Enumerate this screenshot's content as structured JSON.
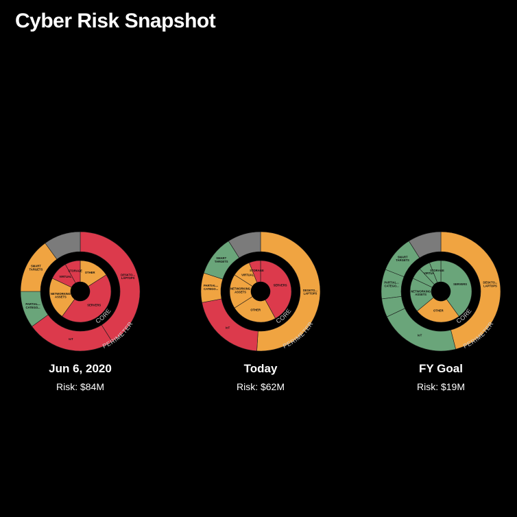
{
  "title": "Cyber Risk Snapshot",
  "colors": {
    "red": "#dc3a4c",
    "orange": "#f0a441",
    "green": "#6aa57a",
    "gray": "#7b7b7b",
    "background": "#000000"
  },
  "chart_data": [
    {
      "type": "pie",
      "variant": "nested-donut",
      "label": "Jun 6, 2020",
      "risk": "Risk: $84M",
      "outer_ring_label": "PERIMETER",
      "inner_ring_label": "CORE",
      "outer": [
        {
          "name": "DESKTO... LAPTOPS",
          "value": 41,
          "color": "red"
        },
        {
          "name": "IoT",
          "value": 24,
          "color": "red"
        },
        {
          "name": "PARTIAL... CATEGO...",
          "value": 10,
          "color": "green"
        },
        {
          "name": "SMART TARGETS",
          "value": 15,
          "color": "orange"
        },
        {
          "name": "",
          "value": 10,
          "color": "gray"
        }
      ],
      "inner": [
        {
          "name": "OTHER",
          "value": 16,
          "color": "orange"
        },
        {
          "name": "SERVERS",
          "value": 44,
          "color": "red"
        },
        {
          "name": "NETWORKING ASSETS",
          "value": 22,
          "color": "orange"
        },
        {
          "name": "VIRTUAL",
          "value": 10,
          "color": "red"
        },
        {
          "name": "STORAGE",
          "value": 8,
          "color": "red"
        }
      ]
    },
    {
      "type": "pie",
      "variant": "nested-donut",
      "label": "Today",
      "risk": "Risk: $62M",
      "outer_ring_label": "PERIMETER",
      "inner_ring_label": "CORE",
      "outer": [
        {
          "name": "DESKTO... LAPTOPS",
          "value": 51,
          "color": "orange"
        },
        {
          "name": "IoT",
          "value": 21,
          "color": "red"
        },
        {
          "name": "PARTIAL... CATEGO...",
          "value": 8,
          "color": "orange"
        },
        {
          "name": "SMART TARGETS",
          "value": 11,
          "color": "green"
        },
        {
          "name": "",
          "value": 9,
          "color": "gray"
        }
      ],
      "inner": [
        {
          "name": "SERVERS",
          "value": 42,
          "color": "red"
        },
        {
          "name": "OTHER",
          "value": 24,
          "color": "orange"
        },
        {
          "name": "NETWORKING ASSETS",
          "value": 18,
          "color": "orange"
        },
        {
          "name": "VIRTUAL",
          "value": 10,
          "color": "orange"
        },
        {
          "name": "STORAGE",
          "value": 6,
          "color": "red"
        }
      ]
    },
    {
      "type": "pie",
      "variant": "nested-donut",
      "label": "FY Goal",
      "risk": "Risk: $19M",
      "outer_ring_label": "PERIMETER",
      "inner_ring_label": "CORE",
      "outer": [
        {
          "name": "DESKTO... LAPTOPS",
          "value": 46,
          "color": "orange"
        },
        {
          "name": "IoT",
          "value": 22,
          "color": "green"
        },
        {
          "name": "",
          "value": 5,
          "color": "green"
        },
        {
          "name": "PARTIAL... CATEGO...",
          "value": 8,
          "color": "green"
        },
        {
          "name": "SMART TARGETS",
          "value": 10,
          "color": "green"
        },
        {
          "name": "",
          "value": 9,
          "color": "gray"
        }
      ],
      "inner": [
        {
          "name": "SERVERS",
          "value": 40,
          "color": "green"
        },
        {
          "name": "OTHER",
          "value": 24,
          "color": "orange"
        },
        {
          "name": "NETWORKING ASSETS",
          "value": 18,
          "color": "green"
        },
        {
          "name": "",
          "value": 6,
          "color": "green"
        },
        {
          "name": "VIRTUAL",
          "value": 6,
          "color": "green"
        },
        {
          "name": "STORAGE",
          "value": 6,
          "color": "green"
        }
      ]
    }
  ]
}
